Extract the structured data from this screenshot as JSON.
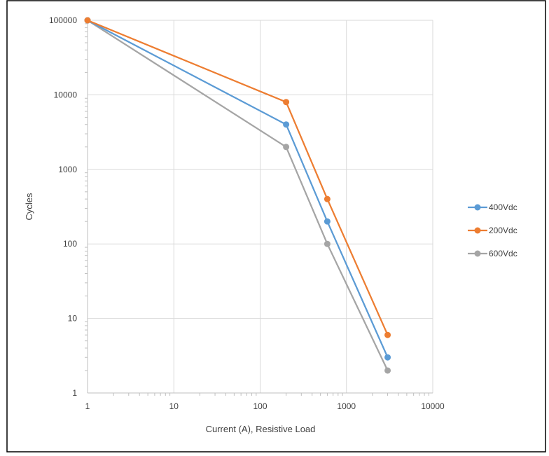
{
  "chart_data": {
    "type": "line",
    "title": "",
    "xlabel": "Current (A), Resistive Load",
    "ylabel": "Cycles",
    "x_scale": "log",
    "y_scale": "log",
    "xlim": [
      1,
      10000
    ],
    "ylim": [
      1,
      100000
    ],
    "x_ticks": [
      "1",
      "10",
      "100",
      "1000",
      "10000"
    ],
    "y_ticks": [
      "1",
      "10",
      "100",
      "1000",
      "10000",
      "100000"
    ],
    "grid": true,
    "legend_position": "right",
    "series": [
      {
        "name": "400Vdc",
        "color": "#5b9bd5",
        "x": [
          1,
          200,
          600,
          3000
        ],
        "y": [
          100000,
          4000,
          200,
          3
        ]
      },
      {
        "name": "200Vdc",
        "color": "#ed7d31",
        "x": [
          1,
          200,
          600,
          3000
        ],
        "y": [
          100000,
          8000,
          400,
          6
        ]
      },
      {
        "name": "600Vdc",
        "color": "#a5a5a5",
        "x": [
          1,
          200,
          600,
          3000
        ],
        "y": [
          100000,
          2000,
          100,
          2
        ]
      }
    ]
  }
}
